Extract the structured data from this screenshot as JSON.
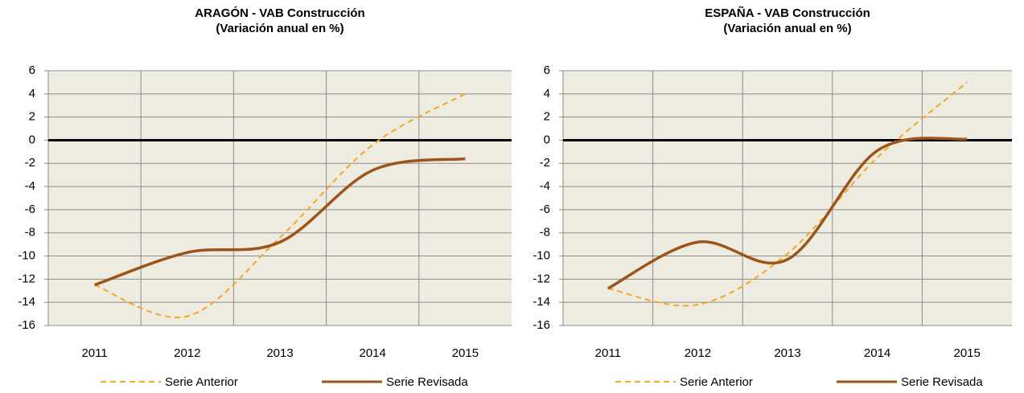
{
  "chart_data": [
    {
      "type": "line",
      "title": "ARAGÓN - VAB Construcción",
      "subtitle": "(Variación anual en %)",
      "categories": [
        "2011",
        "2012",
        "2013",
        "2014",
        "2015"
      ],
      "series": [
        {
          "name": "Serie Anterior",
          "color": "#f5a623",
          "dashed": true,
          "values": [
            -12.5,
            -15.2,
            -8.4,
            -0.4,
            4.0
          ]
        },
        {
          "name": "Serie Revisada",
          "color": "#9c5418",
          "dashed": false,
          "values": [
            -12.5,
            -9.7,
            -8.8,
            -2.6,
            -1.6
          ]
        }
      ],
      "ylim": [
        -16,
        6
      ],
      "yticks": [
        -16,
        -14,
        -12,
        -10,
        -8,
        -6,
        -4,
        -2,
        0,
        2,
        4,
        6
      ],
      "grid": true,
      "legend": "bottom"
    },
    {
      "type": "line",
      "title": "ESPAÑA - VAB Construcción",
      "subtitle": "(Variación anual en %)",
      "categories": [
        "2011",
        "2012",
        "2013",
        "2014",
        "2015"
      ],
      "series": [
        {
          "name": "Serie Anterior",
          "color": "#f5a623",
          "dashed": true,
          "values": [
            -12.8,
            -14.2,
            -9.8,
            -1.5,
            5.0
          ]
        },
        {
          "name": "Serie Revisada",
          "color": "#9c5418",
          "dashed": false,
          "values": [
            -12.8,
            -8.8,
            -10.3,
            -0.9,
            0.1
          ]
        }
      ],
      "ylim": [
        -16,
        6
      ],
      "yticks": [
        -16,
        -14,
        -12,
        -10,
        -8,
        -6,
        -4,
        -2,
        0,
        2,
        4,
        6
      ],
      "grid": true,
      "legend": "bottom"
    }
  ]
}
